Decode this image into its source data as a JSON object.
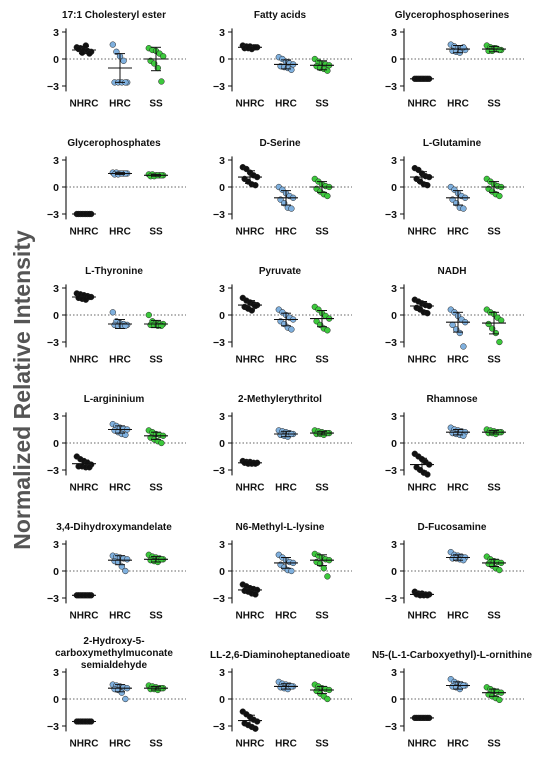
{
  "figure": {
    "ylabel": "Normalized Relative Intensity",
    "groups": [
      "NHRC",
      "HRC",
      "SS"
    ],
    "group_colors": [
      "#111111",
      "#7fb0de",
      "#3cc93c"
    ],
    "yticks": [
      3,
      0,
      -3
    ]
  },
  "chart_data": [
    {
      "type": "scatter",
      "title": "17:1 Cholesteryl ester",
      "categories": [
        "NHRC",
        "HRC",
        "SS"
      ],
      "ylim": [
        -4,
        3.5
      ],
      "series": [
        {
          "name": "NHRC",
          "center": 1.0,
          "sd": 0.4,
          "values": [
            1.3,
            1.2,
            1.0,
            0.9,
            0.8,
            1.1,
            0.7,
            1.5,
            0.6
          ]
        },
        {
          "name": "HRC",
          "center": -1.0,
          "sd": 1.6,
          "values": [
            1.6,
            0.8,
            0.3,
            -0.2,
            -2.6,
            -2.6,
            -2.6,
            -2.6,
            -2.6
          ]
        },
        {
          "name": "SS",
          "center": 0.0,
          "sd": 1.3,
          "values": [
            1.2,
            1.0,
            0.9,
            0.6,
            0.3,
            -0.2,
            -0.5,
            -1.0,
            -2.5
          ]
        }
      ]
    },
    {
      "type": "scatter",
      "title": "Fatty acids",
      "categories": [
        "NHRC",
        "HRC",
        "SS"
      ],
      "ylim": [
        -4,
        3.5
      ],
      "series": [
        {
          "name": "NHRC",
          "center": 1.3,
          "sd": 0.2,
          "values": [
            1.5,
            1.4,
            1.4,
            1.3,
            1.3,
            1.2,
            1.2,
            1.1,
            1.3
          ]
        },
        {
          "name": "HRC",
          "center": -0.6,
          "sd": 0.5,
          "values": [
            0.2,
            0.0,
            -0.3,
            -0.5,
            -0.6,
            -0.8,
            -0.9,
            -1.0,
            -1.2
          ]
        },
        {
          "name": "SS",
          "center": -0.7,
          "sd": 0.5,
          "values": [
            0.0,
            -0.3,
            -0.5,
            -0.6,
            -0.7,
            -0.8,
            -1.0,
            -1.1,
            -1.3
          ]
        }
      ]
    },
    {
      "type": "scatter",
      "title": "Glycerophosphoserines",
      "categories": [
        "NHRC",
        "HRC",
        "SS"
      ],
      "ylim": [
        -4,
        3.5
      ],
      "series": [
        {
          "name": "NHRC",
          "center": -2.2,
          "sd": 0.1,
          "values": [
            -2.2,
            -2.2,
            -2.2,
            -2.2,
            -2.2,
            -2.2,
            -2.2,
            -2.2,
            -2.2
          ]
        },
        {
          "name": "HRC",
          "center": 1.1,
          "sd": 0.4,
          "values": [
            1.6,
            1.4,
            1.2,
            1.1,
            1.0,
            0.9,
            0.8,
            0.7,
            1.3
          ]
        },
        {
          "name": "SS",
          "center": 1.1,
          "sd": 0.3,
          "values": [
            1.5,
            1.3,
            1.2,
            1.1,
            1.0,
            0.9,
            0.9,
            1.2,
            1.0
          ]
        }
      ]
    },
    {
      "type": "scatter",
      "title": "Glycerophosphates",
      "categories": [
        "NHRC",
        "HRC",
        "SS"
      ],
      "ylim": [
        -4,
        3.5
      ],
      "series": [
        {
          "name": "NHRC",
          "center": -3.0,
          "sd": 0.05,
          "values": [
            -3.0,
            -3.0,
            -3.0,
            -3.0,
            -3.0,
            -3.0,
            -3.0,
            -3.0,
            -3.0
          ]
        },
        {
          "name": "HRC",
          "center": 1.5,
          "sd": 0.1,
          "values": [
            1.6,
            1.6,
            1.5,
            1.5,
            1.5,
            1.4,
            1.4,
            1.5,
            1.5
          ]
        },
        {
          "name": "SS",
          "center": 1.3,
          "sd": 0.1,
          "values": [
            1.4,
            1.4,
            1.3,
            1.3,
            1.3,
            1.2,
            1.2,
            1.3,
            1.3
          ]
        }
      ]
    },
    {
      "type": "scatter",
      "title": "D-Serine",
      "categories": [
        "NHRC",
        "HRC",
        "SS"
      ],
      "ylim": [
        -4,
        3.5
      ],
      "series": [
        {
          "name": "NHRC",
          "center": 1.1,
          "sd": 0.7,
          "values": [
            2.2,
            2.0,
            1.6,
            1.3,
            1.1,
            0.9,
            0.6,
            0.3,
            0.2
          ]
        },
        {
          "name": "HRC",
          "center": -1.2,
          "sd": 0.8,
          "values": [
            0.0,
            -0.3,
            -0.7,
            -1.0,
            -1.2,
            -1.4,
            -1.8,
            -2.3,
            -2.4
          ]
        },
        {
          "name": "SS",
          "center": 0.0,
          "sd": 0.6,
          "values": [
            0.9,
            0.6,
            0.3,
            0.1,
            0.0,
            -0.2,
            -0.5,
            -0.8,
            -1.0
          ]
        }
      ]
    },
    {
      "type": "scatter",
      "title": "L-Glutamine",
      "categories": [
        "NHRC",
        "HRC",
        "SS"
      ],
      "ylim": [
        -4,
        3.5
      ],
      "series": [
        {
          "name": "NHRC",
          "center": 1.1,
          "sd": 0.6,
          "values": [
            2.1,
            1.9,
            1.5,
            1.2,
            1.1,
            0.9,
            0.6,
            0.3,
            0.2
          ]
        },
        {
          "name": "HRC",
          "center": -1.2,
          "sd": 0.8,
          "values": [
            0.0,
            -0.3,
            -0.7,
            -1.0,
            -1.2,
            -1.4,
            -1.8,
            -2.3,
            -2.4
          ]
        },
        {
          "name": "SS",
          "center": 0.0,
          "sd": 0.6,
          "values": [
            0.9,
            0.6,
            0.3,
            0.1,
            0.0,
            -0.2,
            -0.5,
            -0.8,
            -1.0
          ]
        }
      ]
    },
    {
      "type": "scatter",
      "title": "L-Thyronine",
      "categories": [
        "NHRC",
        "HRC",
        "SS"
      ],
      "ylim": [
        -4,
        3.5
      ],
      "series": [
        {
          "name": "NHRC",
          "center": 2.0,
          "sd": 0.2,
          "values": [
            2.4,
            2.3,
            2.2,
            2.1,
            2.0,
            1.9,
            1.8,
            1.7,
            2.0
          ]
        },
        {
          "name": "HRC",
          "center": -1.0,
          "sd": 0.5,
          "values": [
            0.3,
            -0.7,
            -0.9,
            -1.0,
            -1.1,
            -1.1,
            -1.2,
            -1.2,
            -1.2
          ]
        },
        {
          "name": "SS",
          "center": -1.0,
          "sd": 0.4,
          "values": [
            0.0,
            -0.7,
            -0.9,
            -1.0,
            -1.0,
            -1.1,
            -1.1,
            -1.2,
            -1.2
          ]
        }
      ]
    },
    {
      "type": "scatter",
      "title": "Pyruvate",
      "categories": [
        "NHRC",
        "HRC",
        "SS"
      ],
      "ylim": [
        -4,
        3.5
      ],
      "series": [
        {
          "name": "NHRC",
          "center": 1.1,
          "sd": 0.5,
          "values": [
            1.9,
            1.6,
            1.4,
            1.2,
            1.1,
            0.9,
            0.7,
            0.5,
            1.0
          ]
        },
        {
          "name": "HRC",
          "center": -0.5,
          "sd": 0.7,
          "values": [
            0.6,
            0.3,
            0.0,
            -0.3,
            -0.5,
            -0.7,
            -1.0,
            -1.4,
            -1.6
          ]
        },
        {
          "name": "SS",
          "center": -0.4,
          "sd": 0.9,
          "values": [
            0.9,
            0.6,
            0.2,
            -0.1,
            -0.4,
            -0.7,
            -1.1,
            -1.5,
            -1.7
          ]
        }
      ]
    },
    {
      "type": "scatter",
      "title": "NADH",
      "categories": [
        "NHRC",
        "HRC",
        "SS"
      ],
      "ylim": [
        -4,
        3.5
      ],
      "series": [
        {
          "name": "NHRC",
          "center": 1.0,
          "sd": 0.5,
          "values": [
            1.7,
            1.5,
            1.3,
            1.1,
            1.0,
            0.8,
            0.6,
            0.3,
            0.2
          ]
        },
        {
          "name": "HRC",
          "center": -0.8,
          "sd": 1.1,
          "values": [
            0.6,
            0.3,
            -0.1,
            -0.5,
            -0.8,
            -1.1,
            -1.6,
            -2.0,
            -3.5
          ]
        },
        {
          "name": "SS",
          "center": -0.9,
          "sd": 1.2,
          "values": [
            0.6,
            0.3,
            0.1,
            -0.3,
            -0.6,
            -1.0,
            -1.5,
            -2.0,
            -3.0
          ]
        }
      ]
    },
    {
      "type": "scatter",
      "title": "L-argininium",
      "categories": [
        "NHRC",
        "HRC",
        "SS"
      ],
      "ylim": [
        -4,
        3.5
      ],
      "series": [
        {
          "name": "NHRC",
          "center": -2.3,
          "sd": 0.4,
          "values": [
            -1.5,
            -1.8,
            -2.0,
            -2.2,
            -2.4,
            -2.6,
            -2.6,
            -2.7,
            -2.7
          ]
        },
        {
          "name": "HRC",
          "center": 1.5,
          "sd": 0.4,
          "values": [
            2.1,
            1.9,
            1.7,
            1.6,
            1.5,
            1.4,
            1.2,
            1.0,
            0.9
          ]
        },
        {
          "name": "SS",
          "center": 0.8,
          "sd": 0.4,
          "values": [
            1.4,
            1.2,
            1.0,
            0.9,
            0.8,
            0.6,
            0.4,
            0.2,
            0.0
          ]
        }
      ]
    },
    {
      "type": "scatter",
      "title": "2-Methylerythritol",
      "categories": [
        "NHRC",
        "HRC",
        "SS"
      ],
      "ylim": [
        -4,
        3.5
      ],
      "series": [
        {
          "name": "NHRC",
          "center": -2.2,
          "sd": 0.1,
          "values": [
            -2.0,
            -2.1,
            -2.1,
            -2.2,
            -2.2,
            -2.2,
            -2.3,
            -2.3,
            -2.3
          ]
        },
        {
          "name": "HRC",
          "center": 1.0,
          "sd": 0.3,
          "values": [
            1.4,
            1.3,
            1.2,
            1.1,
            1.0,
            0.9,
            0.8,
            0.7,
            1.0
          ]
        },
        {
          "name": "SS",
          "center": 1.1,
          "sd": 0.2,
          "values": [
            1.4,
            1.3,
            1.2,
            1.1,
            1.1,
            1.0,
            1.0,
            0.9,
            1.1
          ]
        }
      ]
    },
    {
      "type": "scatter",
      "title": "Rhamnose",
      "categories": [
        "NHRC",
        "HRC",
        "SS"
      ],
      "ylim": [
        -4,
        3.5
      ],
      "series": [
        {
          "name": "NHRC",
          "center": -2.4,
          "sd": 0.7,
          "values": [
            -1.2,
            -1.5,
            -1.8,
            -2.1,
            -2.4,
            -2.7,
            -3.0,
            -3.3,
            -3.5
          ]
        },
        {
          "name": "HRC",
          "center": 1.2,
          "sd": 0.3,
          "values": [
            1.7,
            1.5,
            1.4,
            1.3,
            1.2,
            1.1,
            1.0,
            0.9,
            0.8
          ]
        },
        {
          "name": "SS",
          "center": 1.2,
          "sd": 0.2,
          "values": [
            1.5,
            1.4,
            1.3,
            1.2,
            1.2,
            1.1,
            1.1,
            1.0,
            1.2
          ]
        }
      ]
    },
    {
      "type": "scatter",
      "title": "3,4-Dihydroxymandelate",
      "categories": [
        "NHRC",
        "HRC",
        "SS"
      ],
      "ylim": [
        -4,
        3.5
      ],
      "series": [
        {
          "name": "NHRC",
          "center": -2.7,
          "sd": 0.05,
          "values": [
            -2.7,
            -2.7,
            -2.7,
            -2.7,
            -2.7,
            -2.7,
            -2.7,
            -2.7,
            -2.7
          ]
        },
        {
          "name": "HRC",
          "center": 1.2,
          "sd": 0.5,
          "values": [
            1.7,
            1.6,
            1.5,
            1.4,
            1.3,
            1.1,
            1.0,
            0.5,
            0.0
          ]
        },
        {
          "name": "SS",
          "center": 1.3,
          "sd": 0.3,
          "values": [
            1.8,
            1.6,
            1.5,
            1.4,
            1.3,
            1.2,
            1.1,
            1.0,
            1.3
          ]
        }
      ]
    },
    {
      "type": "scatter",
      "title": "N6-Methyl-L-lysine",
      "categories": [
        "NHRC",
        "HRC",
        "SS"
      ],
      "ylim": [
        -4,
        3.5
      ],
      "series": [
        {
          "name": "NHRC",
          "center": -2.1,
          "sd": 0.3,
          "values": [
            -1.5,
            -1.7,
            -1.9,
            -2.0,
            -2.1,
            -2.2,
            -2.3,
            -2.5,
            -2.6
          ]
        },
        {
          "name": "HRC",
          "center": 0.9,
          "sd": 0.6,
          "values": [
            1.8,
            1.5,
            1.2,
            1.0,
            0.9,
            0.7,
            0.4,
            0.1,
            0.0
          ]
        },
        {
          "name": "SS",
          "center": 1.2,
          "sd": 0.6,
          "values": [
            1.9,
            1.7,
            1.5,
            1.3,
            1.2,
            1.0,
            0.8,
            0.3,
            -0.6
          ]
        }
      ]
    },
    {
      "type": "scatter",
      "title": "D-Fucosamine",
      "categories": [
        "NHRC",
        "HRC",
        "SS"
      ],
      "ylim": [
        -4,
        3.5
      ],
      "series": [
        {
          "name": "NHRC",
          "center": -2.6,
          "sd": 0.1,
          "values": [
            -2.3,
            -2.5,
            -2.5,
            -2.6,
            -2.6,
            -2.6,
            -2.7,
            -2.7,
            -2.7
          ]
        },
        {
          "name": "HRC",
          "center": 1.5,
          "sd": 0.3,
          "values": [
            2.1,
            1.8,
            1.7,
            1.6,
            1.5,
            1.4,
            1.4,
            1.3,
            1.2
          ]
        },
        {
          "name": "SS",
          "center": 0.9,
          "sd": 0.4,
          "values": [
            1.6,
            1.3,
            1.1,
            1.0,
            0.9,
            0.8,
            0.6,
            0.3,
            0.1
          ]
        }
      ]
    },
    {
      "type": "scatter",
      "title": "2-Hydroxy-5-carboxymethylmuconate semialdehyde",
      "title_lines": [
        "2-Hydroxy-5-",
        "carboxymethylmuconate",
        "semialdehyde"
      ],
      "categories": [
        "NHRC",
        "HRC",
        "SS"
      ],
      "ylim": [
        -4,
        3.5
      ],
      "series": [
        {
          "name": "NHRC",
          "center": -2.5,
          "sd": 0.05,
          "values": [
            -2.5,
            -2.5,
            -2.5,
            -2.5,
            -2.5,
            -2.5,
            -2.5,
            -2.5,
            -2.5
          ]
        },
        {
          "name": "HRC",
          "center": 1.2,
          "sd": 0.4,
          "values": [
            1.6,
            1.5,
            1.4,
            1.3,
            1.2,
            1.1,
            1.0,
            0.7,
            0.0
          ]
        },
        {
          "name": "SS",
          "center": 1.2,
          "sd": 0.2,
          "values": [
            1.5,
            1.4,
            1.3,
            1.2,
            1.2,
            1.1,
            1.1,
            1.0,
            1.2
          ]
        }
      ]
    },
    {
      "type": "scatter",
      "title": "LL-2,6-Diaminoheptanedioate",
      "categories": [
        "NHRC",
        "HRC",
        "SS"
      ],
      "ylim": [
        -4,
        3.5
      ],
      "series": [
        {
          "name": "NHRC",
          "center": -2.4,
          "sd": 0.6,
          "values": [
            -1.4,
            -1.7,
            -2.0,
            -2.3,
            -2.5,
            -2.7,
            -2.9,
            -3.1,
            -3.3
          ]
        },
        {
          "name": "HRC",
          "center": 1.4,
          "sd": 0.3,
          "values": [
            1.9,
            1.7,
            1.6,
            1.5,
            1.4,
            1.3,
            1.2,
            1.1,
            1.4
          ]
        },
        {
          "name": "SS",
          "center": 1.0,
          "sd": 0.4,
          "values": [
            1.6,
            1.4,
            1.2,
            1.1,
            1.0,
            0.9,
            0.6,
            0.3,
            0.0
          ]
        }
      ]
    },
    {
      "type": "scatter",
      "title": "N5-(L-1-Carboxyethyl)-L-ornithine",
      "categories": [
        "NHRC",
        "HRC",
        "SS"
      ],
      "ylim": [
        -4,
        3.5
      ],
      "series": [
        {
          "name": "NHRC",
          "center": -2.1,
          "sd": 0.05,
          "values": [
            -2.1,
            -2.1,
            -2.1,
            -2.1,
            -2.1,
            -2.1,
            -2.1,
            -2.1,
            -2.1
          ]
        },
        {
          "name": "HRC",
          "center": 1.5,
          "sd": 0.4,
          "values": [
            2.2,
            1.9,
            1.7,
            1.6,
            1.5,
            1.4,
            1.3,
            1.1,
            1.5
          ]
        },
        {
          "name": "SS",
          "center": 0.7,
          "sd": 0.4,
          "values": [
            1.3,
            1.1,
            0.9,
            0.8,
            0.7,
            0.5,
            0.3,
            0.1,
            -0.1
          ]
        }
      ]
    }
  ]
}
